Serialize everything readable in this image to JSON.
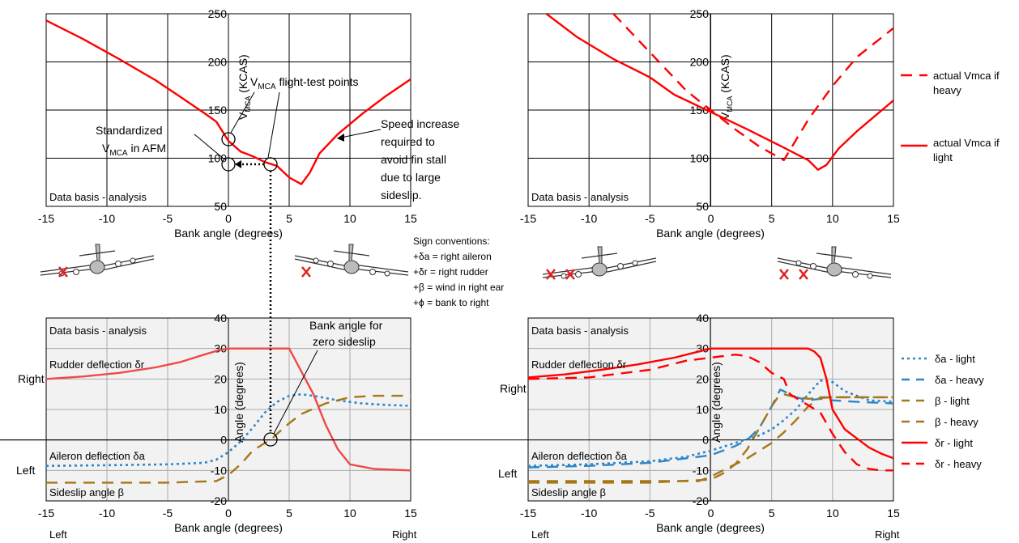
{
  "chart_data": [
    {
      "id": "vmca_left",
      "type": "line",
      "xlabel": "Bank angle (degrees)",
      "ylabel_main": "V",
      "ylabel_sub": "MCA",
      "ylabel_tail": " (KCAS)",
      "xlim": [
        -15,
        15
      ],
      "ylim": [
        50,
        250
      ],
      "x_ticks": [
        "-15",
        "-10",
        "-5",
        "0",
        "5",
        "10",
        "15"
      ],
      "y_ticks": [
        "50",
        "100",
        "150",
        "200",
        "250"
      ],
      "grid": true,
      "series": [
        {
          "color": "#ff0000",
          "style": "solid",
          "x": [
            -15,
            -12,
            -9,
            -6,
            -4,
            -2,
            -1,
            0,
            1,
            2,
            3,
            4,
            5,
            6,
            6.7,
            7.5,
            9,
            11,
            13,
            15
          ],
          "y": [
            243,
            224,
            203,
            181,
            164,
            147,
            138,
            118,
            107,
            102,
            96,
            92,
            80,
            73,
            85,
            105,
            125,
            146,
            165,
            182
          ]
        }
      ],
      "texts": {
        "data_basis": "Data basis - analysis",
        "flight_test": "V",
        "flight_test_sub": "MCA",
        "flight_test_tail": " flight-test points",
        "standardized": "Standardized",
        "standardized2": "V",
        "standardized2_sub": "MCA",
        "standardized2_tail": " in AFM",
        "speed_increase": [
          "Speed increase",
          "required to",
          "avoid fin stall",
          "due to large",
          "sideslip."
        ]
      }
    },
    {
      "id": "vmca_right",
      "type": "line",
      "xlabel": "Bank angle (degrees)",
      "ylabel_main": "V",
      "ylabel_sub": "MCA",
      "ylabel_tail": " (KCAS)",
      "xlim": [
        -15,
        15
      ],
      "ylim": [
        50,
        250
      ],
      "x_ticks": [
        "-15",
        "-10",
        "-5",
        "0",
        "5",
        "10",
        "15"
      ],
      "y_ticks": [
        "50",
        "100",
        "150",
        "200",
        "250"
      ],
      "grid": true,
      "series": [
        {
          "name": "actual Vmca if heavy",
          "color": "#ff0000",
          "style": "dashed",
          "x": [
            -8,
            -5,
            -2,
            0,
            2,
            4,
            6,
            8,
            10,
            12,
            15
          ],
          "y": [
            250,
            210,
            170,
            150,
            130,
            112,
            98,
            140,
            175,
            205,
            235
          ]
        },
        {
          "name": "actual Vmca if light",
          "color": "#ff0000",
          "style": "solid",
          "x": [
            -13.5,
            -11,
            -8,
            -5,
            -3,
            0,
            3,
            6,
            8,
            8.8,
            9.5,
            10.5,
            12,
            13.5,
            15
          ],
          "y": [
            250,
            226,
            203,
            184,
            166,
            148,
            130,
            111,
            98,
            88,
            93,
            110,
            128,
            144,
            160
          ]
        }
      ],
      "texts": {
        "data_basis": "Data basis - analysis"
      }
    },
    {
      "id": "angles_left",
      "type": "line",
      "xlabel": "Bank angle (degrees)",
      "ylabel": "Angle   (degrees)",
      "xlim": [
        -15,
        15
      ],
      "ylim": [
        -20,
        40
      ],
      "x_ticks": [
        "-15",
        "-10",
        "-5",
        "0",
        "5",
        "10",
        "15"
      ],
      "y_ticks": [
        "-20",
        "-10",
        "0",
        "10",
        "20",
        "30",
        "40"
      ],
      "grid": true,
      "series": [
        {
          "color": "#f04848",
          "style": "solid",
          "x": [
            -15,
            -12,
            -9,
            -6,
            -4,
            -2,
            -1,
            0,
            5,
            7,
            8,
            9,
            10,
            12,
            15
          ],
          "y": [
            20,
            20.8,
            22,
            23.8,
            25.5,
            28,
            29.2,
            30,
            30,
            15,
            5,
            -3,
            -8,
            -9.5,
            -10
          ]
        },
        {
          "color": "#2e86c8",
          "style": "dotted",
          "x": [
            -15,
            -10,
            -5,
            -2,
            -1,
            0,
            1,
            2,
            3,
            4,
            5,
            6,
            7,
            9,
            11,
            13,
            15
          ],
          "y": [
            -8.5,
            -8.3,
            -8,
            -7.5,
            -6.5,
            -4,
            -0.5,
            4,
            9,
            12.5,
            14.5,
            15,
            14.5,
            13,
            12,
            11.5,
            11.2
          ]
        },
        {
          "color": "#a47718",
          "style": "dashed",
          "x": [
            -15,
            -10,
            -5,
            -1,
            0,
            1,
            2,
            3,
            3.5,
            4,
            5,
            6,
            8,
            10,
            12,
            13,
            15
          ],
          "y": [
            -14,
            -14,
            -14,
            -13.5,
            -11.5,
            -8,
            -3.5,
            -1,
            0,
            2,
            5.5,
            8.5,
            12,
            14,
            14.5,
            14.5,
            14.5
          ]
        }
      ],
      "texts": {
        "data_basis": "Data basis - analysis",
        "rudder": "Rudder deflection δr",
        "aileron": "Aileron deflection  δa",
        "sideslip": "Sideslip angle  β",
        "bank_zero": [
          "Bank angle for",
          "zero sideslip"
        ],
        "right_label": "Right",
        "left_label": "Left",
        "bottom_left": "Left",
        "bottom_right": "Right"
      }
    },
    {
      "id": "angles_right",
      "type": "line",
      "xlabel": "Bank angle (degrees)",
      "ylabel": "Angle   (degrees)",
      "xlim": [
        -15,
        15
      ],
      "ylim": [
        -20,
        40
      ],
      "x_ticks": [
        "-15",
        "-10",
        "-5",
        "0",
        "5",
        "10",
        "15"
      ],
      "y_ticks": [
        "-20",
        "-10",
        "0",
        "10",
        "20",
        "30",
        "40"
      ],
      "grid": true,
      "series": [
        {
          "name": "δa - light",
          "color": "#2e86c8",
          "style": "dotted",
          "x": [
            -15,
            -10,
            -5,
            -2,
            0,
            2,
            4,
            5,
            6,
            7,
            8,
            9,
            10,
            11,
            12,
            13,
            15
          ],
          "y": [
            -8.5,
            -8,
            -7,
            -5.5,
            -3.5,
            -1,
            1.5,
            3.5,
            6.5,
            10,
            15,
            19.5,
            19,
            16,
            14.5,
            13,
            12.5
          ]
        },
        {
          "name": "δa - heavy",
          "color": "#2e86c8",
          "style": "dashed",
          "x": [
            -15,
            -10,
            -5,
            0,
            2,
            3,
            4,
            5,
            5.7,
            6,
            7,
            8,
            9,
            10,
            12,
            15
          ],
          "y": [
            -9,
            -8.5,
            -7.5,
            -5,
            -2,
            0,
            4,
            11,
            16.5,
            16,
            14,
            13,
            13.5,
            13,
            12.5,
            12
          ]
        },
        {
          "name": "β - light",
          "color": "#a47718",
          "style": "dashed",
          "x": [
            -15,
            -10,
            -5,
            -1,
            0,
            1,
            3,
            5,
            6,
            7,
            8,
            9,
            10,
            12,
            15
          ],
          "y": [
            -13.5,
            -13.5,
            -13.5,
            -13.5,
            -12,
            -10,
            -6,
            -1,
            2.5,
            6.5,
            11,
            14,
            14,
            14,
            14
          ]
        },
        {
          "name": "β - heavy",
          "color": "#a47718",
          "style": "dashed",
          "x": [
            -15,
            -10,
            -5,
            0,
            1,
            2,
            3,
            4,
            5,
            5.5,
            6,
            7,
            8,
            10,
            12,
            15
          ],
          "y": [
            -14,
            -14,
            -14,
            -13,
            -11,
            -8,
            -3,
            4,
            11,
            14,
            15,
            14,
            13.5,
            14,
            14,
            14
          ]
        },
        {
          "name": "δr - light",
          "color": "#ff0000",
          "style": "solid",
          "x": [
            -15,
            -12,
            -9,
            -6,
            -3,
            0,
            8,
            8.5,
            9,
            9.5,
            10,
            11,
            12,
            13,
            14,
            15
          ],
          "y": [
            20.5,
            21.5,
            23,
            24.8,
            27,
            30,
            30,
            29,
            27,
            20,
            10,
            3.5,
            0.5,
            -2.5,
            -4.5,
            -6
          ]
        },
        {
          "name": "δr - heavy",
          "color": "#ff0000",
          "style": "dashed",
          "x": [
            -15,
            -10,
            -5,
            -2,
            2,
            3,
            4,
            5,
            6,
            6.5,
            9,
            10,
            11,
            12,
            13,
            14,
            15
          ],
          "y": [
            20,
            20.5,
            23,
            26,
            28,
            27.5,
            25.5,
            22,
            20,
            15,
            9,
            2,
            -4,
            -8,
            -9.5,
            -10,
            -10
          ]
        }
      ],
      "texts": {
        "data_basis": "Data basis - analysis",
        "rudder": "Rudder deflection δr",
        "aileron": "Aileron deflection  δa",
        "sideslip": "Sideslip angle  β",
        "right_label": "Right",
        "left_label": "Left",
        "bottom_left": "Left",
        "bottom_right": "Right"
      }
    }
  ],
  "sign_conventions": {
    "title": "Sign conventions:",
    "lines": [
      "+δa = right aileron",
      "+δr = right rudder",
      "+β   = wind in right ear",
      "+ϕ   = bank to right"
    ]
  },
  "colors": {
    "red": "#ff0000",
    "blue": "#2e86c8",
    "brown": "#a47718",
    "plot_bg": "#f2f2f2"
  }
}
